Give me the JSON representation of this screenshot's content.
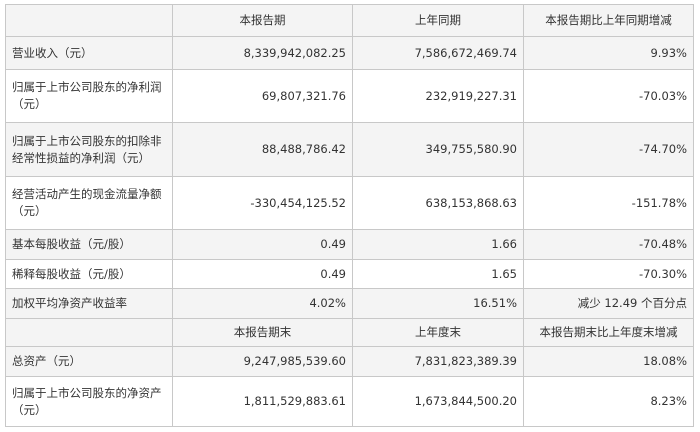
{
  "table": {
    "header1": [
      "",
      "本报告期",
      "上年同期",
      "本报告期比上年同期增减"
    ],
    "rows1": [
      {
        "label": "营业收入（元）",
        "v1": "8,339,942,082.25",
        "v2": "7,586,672,469.74",
        "v3": "9.93%"
      },
      {
        "label": "归属于上市公司股东的净利润（元）",
        "v1": "69,807,321.76",
        "v2": "232,919,227.31",
        "v3": "-70.03%"
      },
      {
        "label": "归属于上市公司股东的扣除非经常性损益的净利润（元）",
        "v1": "88,488,786.42",
        "v2": "349,755,580.90",
        "v3": "-74.70%"
      },
      {
        "label": "经营活动产生的现金流量净额（元）",
        "v1": "-330,454,125.52",
        "v2": "638,153,868.63",
        "v3": "-151.78%"
      },
      {
        "label": "基本每股收益（元/股）",
        "v1": "0.49",
        "v2": "1.66",
        "v3": "-70.48%"
      },
      {
        "label": "稀释每股收益（元/股）",
        "v1": "0.49",
        "v2": "1.65",
        "v3": "-70.30%"
      },
      {
        "label": "加权平均净资产收益率",
        "v1": "4.02%",
        "v2": "16.51%",
        "v3": "减少 12.49 个百分点"
      }
    ],
    "header2": [
      "",
      "本报告期末",
      "上年度末",
      "本报告期末比上年度末增减"
    ],
    "rows2": [
      {
        "label": "总资产（元）",
        "v1": "9,247,985,539.60",
        "v2": "7,831,823,389.39",
        "v3": "18.08%"
      },
      {
        "label": "归属于上市公司股东的净资产（元）",
        "v1": "1,811,529,883.61",
        "v2": "1,673,844,500.20",
        "v3": "8.23%"
      }
    ]
  }
}
